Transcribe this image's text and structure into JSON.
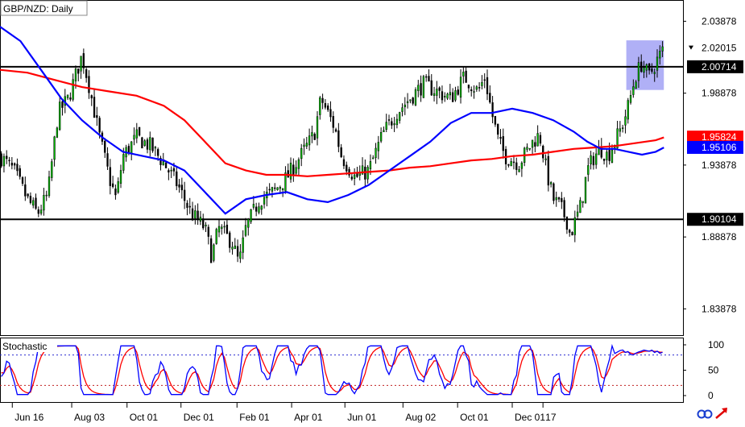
{
  "chart_data": {
    "type": "candlestick",
    "title": "GBP/NZD: Daily",
    "price_axis": {
      "ticks": [
        "2.03878",
        "1.98878",
        "1.93878",
        "1.88878",
        "1.83878"
      ],
      "range": [
        1.8205,
        2.053
      ]
    },
    "time_axis": {
      "ticks": [
        "Jun 16",
        "Aug 03",
        "Oct 01",
        "Dec 01",
        "Feb 01",
        "Apr 01",
        "Jun 01",
        "Aug 02",
        "Oct 01",
        "Dec 01",
        "17"
      ]
    },
    "horizontal_lines": [
      {
        "level": 2.00714,
        "label": "2.00714"
      },
      {
        "level": 1.90104,
        "label": "1.90104"
      }
    ],
    "price_labels": [
      {
        "value": 2.02015,
        "label": "2.02015",
        "bg": "#ffffff",
        "fg": "#000000"
      },
      {
        "value": 1.95824,
        "label": "1.95824",
        "bg": "#ff0000",
        "fg": "#ffffff"
      },
      {
        "value": 1.95106,
        "label": "1.95106",
        "bg": "#0000ff",
        "fg": "#ffffff"
      }
    ],
    "highlight_box": {
      "t_start": 0.917,
      "t_end": 0.972,
      "price_top": 2.0255,
      "price_bottom": 1.991,
      "color": "#7b7bf0"
    },
    "close_path": [
      [
        0.0,
        1.945
      ],
      [
        0.02,
        1.935
      ],
      [
        0.04,
        1.915
      ],
      [
        0.055,
        1.905
      ],
      [
        0.07,
        1.918
      ],
      [
        0.085,
        1.975
      ],
      [
        0.1,
        1.985
      ],
      [
        0.12,
        2.015
      ],
      [
        0.13,
        1.995
      ],
      [
        0.145,
        1.96
      ],
      [
        0.16,
        1.93
      ],
      [
        0.17,
        1.915
      ],
      [
        0.18,
        1.945
      ],
      [
        0.2,
        1.958
      ],
      [
        0.22,
        1.952
      ],
      [
        0.24,
        1.94
      ],
      [
        0.26,
        1.925
      ],
      [
        0.28,
        1.905
      ],
      [
        0.3,
        1.895
      ],
      [
        0.31,
        1.875
      ],
      [
        0.32,
        1.895
      ],
      [
        0.34,
        1.885
      ],
      [
        0.35,
        1.87
      ],
      [
        0.36,
        1.895
      ],
      [
        0.38,
        1.915
      ],
      [
        0.4,
        1.92
      ],
      [
        0.42,
        1.93
      ],
      [
        0.44,
        1.945
      ],
      [
        0.46,
        1.96
      ],
      [
        0.47,
        1.985
      ],
      [
        0.49,
        1.965
      ],
      [
        0.5,
        1.945
      ],
      [
        0.52,
        1.93
      ],
      [
        0.54,
        1.935
      ],
      [
        0.56,
        1.96
      ],
      [
        0.58,
        1.975
      ],
      [
        0.6,
        1.985
      ],
      [
        0.62,
        1.995
      ],
      [
        0.64,
        1.99
      ],
      [
        0.66,
        1.985
      ],
      [
        0.68,
        2.0
      ],
      [
        0.7,
        1.99
      ],
      [
        0.71,
        2.0
      ],
      [
        0.72,
        1.975
      ],
      [
        0.73,
        1.955
      ],
      [
        0.74,
        1.945
      ],
      [
        0.76,
        1.94
      ],
      [
        0.78,
        1.955
      ],
      [
        0.79,
        1.96
      ],
      [
        0.8,
        1.935
      ],
      [
        0.81,
        1.915
      ],
      [
        0.82,
        1.91
      ],
      [
        0.83,
        1.9
      ],
      [
        0.835,
        1.89
      ],
      [
        0.85,
        1.91
      ],
      [
        0.86,
        1.935
      ],
      [
        0.87,
        1.945
      ],
      [
        0.88,
        1.95
      ],
      [
        0.89,
        1.945
      ],
      [
        0.9,
        1.955
      ],
      [
        0.91,
        1.965
      ],
      [
        0.92,
        1.98
      ],
      [
        0.93,
        2.0
      ],
      [
        0.94,
        2.01
      ],
      [
        0.95,
        2.0
      ],
      [
        0.96,
        2.01
      ],
      [
        0.972,
        2.02
      ]
    ],
    "ma_fast": {
      "color": "#0000ff",
      "points": [
        [
          0.0,
          2.035
        ],
        [
          0.03,
          2.025
        ],
        [
          0.06,
          2.005
        ],
        [
          0.09,
          1.985
        ],
        [
          0.12,
          1.97
        ],
        [
          0.15,
          1.958
        ],
        [
          0.18,
          1.948
        ],
        [
          0.21,
          1.945
        ],
        [
          0.24,
          1.942
        ],
        [
          0.27,
          1.935
        ],
        [
          0.3,
          1.92
        ],
        [
          0.33,
          1.905
        ],
        [
          0.36,
          1.915
        ],
        [
          0.39,
          1.918
        ],
        [
          0.42,
          1.92
        ],
        [
          0.45,
          1.915
        ],
        [
          0.48,
          1.913
        ],
        [
          0.51,
          1.918
        ],
        [
          0.54,
          1.925
        ],
        [
          0.57,
          1.935
        ],
        [
          0.6,
          1.945
        ],
        [
          0.63,
          1.955
        ],
        [
          0.66,
          1.968
        ],
        [
          0.69,
          1.975
        ],
        [
          0.72,
          1.975
        ],
        [
          0.75,
          1.978
        ],
        [
          0.78,
          1.975
        ],
        [
          0.81,
          1.97
        ],
        [
          0.84,
          1.962
        ],
        [
          0.86,
          1.955
        ],
        [
          0.88,
          1.95
        ],
        [
          0.9,
          1.95
        ],
        [
          0.92,
          1.948
        ],
        [
          0.94,
          1.946
        ],
        [
          0.96,
          1.948
        ],
        [
          0.972,
          1.951
        ]
      ]
    },
    "ma_slow": {
      "color": "#ff0000",
      "points": [
        [
          0.0,
          2.005
        ],
        [
          0.04,
          2.003
        ],
        [
          0.08,
          1.998
        ],
        [
          0.12,
          1.993
        ],
        [
          0.16,
          1.99
        ],
        [
          0.2,
          1.987
        ],
        [
          0.24,
          1.98
        ],
        [
          0.27,
          1.97
        ],
        [
          0.3,
          1.955
        ],
        [
          0.33,
          1.94
        ],
        [
          0.36,
          1.935
        ],
        [
          0.39,
          1.932
        ],
        [
          0.42,
          1.932
        ],
        [
          0.45,
          1.931
        ],
        [
          0.48,
          1.932
        ],
        [
          0.51,
          1.933
        ],
        [
          0.54,
          1.934
        ],
        [
          0.57,
          1.935
        ],
        [
          0.6,
          1.937
        ],
        [
          0.63,
          1.938
        ],
        [
          0.66,
          1.94
        ],
        [
          0.69,
          1.942
        ],
        [
          0.72,
          1.943
        ],
        [
          0.75,
          1.945
        ],
        [
          0.78,
          1.946
        ],
        [
          0.81,
          1.948
        ],
        [
          0.84,
          1.95
        ],
        [
          0.87,
          1.951
        ],
        [
          0.9,
          1.952
        ],
        [
          0.93,
          1.954
        ],
        [
          0.96,
          1.956
        ],
        [
          0.972,
          1.958
        ]
      ]
    },
    "oscillator": {
      "name": "Stochastic",
      "ticks": [
        "100",
        "50",
        "0"
      ],
      "levels": [
        80,
        20
      ],
      "range": [
        0,
        100
      ],
      "main_color": "#0000ff",
      "signal_color": "#ff0000"
    }
  }
}
